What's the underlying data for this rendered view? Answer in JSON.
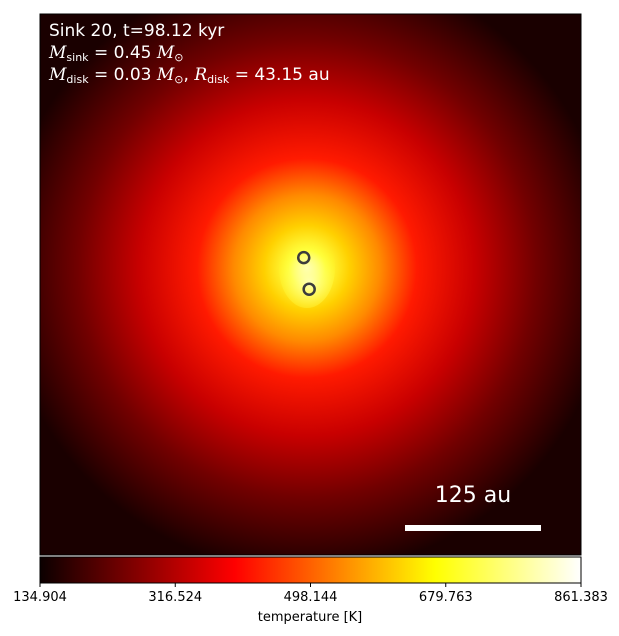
{
  "chart_data": {
    "type": "heatmap",
    "annotations": {
      "line1": "Sink 20, t=98.12 kyr",
      "line2_symbol": "M",
      "line2_sub": "sink",
      "line2_value": "= 0.45",
      "line2_unit_symbol": "M",
      "line2_unit_sub": "⊙",
      "line3_symbol": "M",
      "line3_sub": "disk",
      "line3_value": "= 0.03",
      "line3_unit_symbol": "M",
      "line3_unit_sub": "⊙",
      "line3_r_symbol": "R",
      "line3_r_sub": "disk",
      "line3_r_value": "= 43.15 au"
    },
    "scale_bar": {
      "label": "125 au",
      "length_au": 125
    },
    "sinks": [
      {
        "x_au": -6,
        "y_au": 42
      },
      {
        "x_au": 4,
        "y_au": -16
      }
    ],
    "colorbar": {
      "label": "temperature [K]",
      "min": 134.904,
      "max": 861.383,
      "ticks": [
        "134.904",
        "316.524",
        "498.144",
        "679.763",
        "861.383"
      ],
      "colormap": "hot",
      "orientation": "horizontal",
      "position": "bottom"
    },
    "field": {
      "quantity": "temperature",
      "peak_K": 861.383,
      "floor_K": 134.904,
      "shape": "centrally peaked, radially decreasing"
    },
    "axes_visible": false
  }
}
